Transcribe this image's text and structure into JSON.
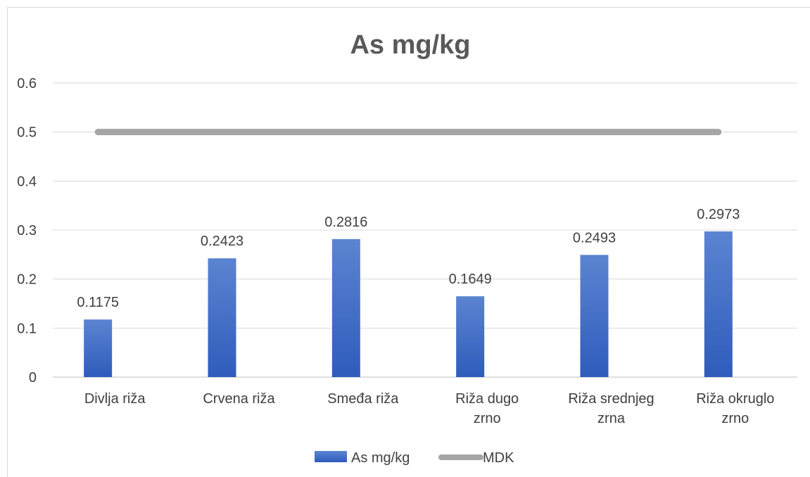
{
  "chart_data": {
    "type": "bar",
    "title": "As mg/kg",
    "categories": [
      [
        "Divlja riža"
      ],
      [
        "Crvena riža"
      ],
      [
        "Smeđa riža"
      ],
      [
        "Riža dugo",
        "zrno"
      ],
      [
        "Riža srednjeg",
        "zrna"
      ],
      [
        "Riža okruglo",
        "zrno"
      ]
    ],
    "series": [
      {
        "name": "As mg/kg",
        "kind": "bar",
        "color": "#4472c4",
        "values": [
          0.1175,
          0.2423,
          0.2816,
          0.1649,
          0.2493,
          0.2973
        ],
        "labels": [
          "0.1175",
          "0.2423",
          "0.2816",
          "0.1649",
          "0.2493",
          "0.2973"
        ]
      },
      {
        "name": "MDK",
        "kind": "line",
        "color": "#a5a5a5",
        "values": [
          0.5,
          0.5,
          0.5,
          0.5,
          0.5,
          0.5
        ]
      }
    ],
    "yticks": [
      "0",
      "0.1",
      "0.2",
      "0.3",
      "0.4",
      "0.5",
      "0.6"
    ],
    "ylim": [
      0,
      0.6
    ],
    "grid": true,
    "legend_position": "bottom"
  }
}
